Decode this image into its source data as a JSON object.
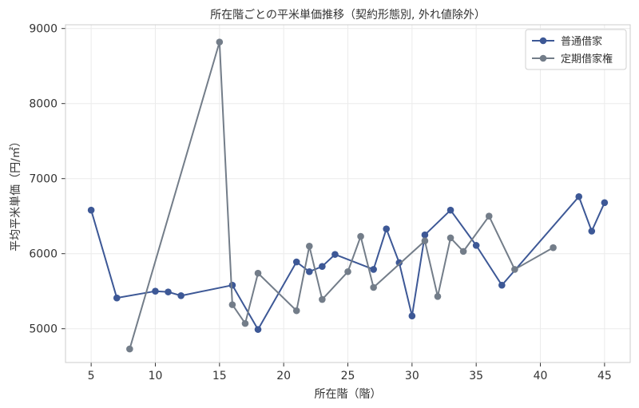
{
  "chart_data": {
    "type": "line",
    "title": "所在階ごとの平米単価推移（契約形態別, 外れ値除外）",
    "xlabel": "所在階（階）",
    "ylabel": "平均平米単価（円/㎡）",
    "xlim": [
      3,
      47
    ],
    "ylim": [
      4550,
      9050
    ],
    "xticks": [
      5,
      10,
      15,
      20,
      25,
      30,
      35,
      40,
      45
    ],
    "yticks": [
      5000,
      6000,
      7000,
      8000,
      9000
    ],
    "grid": true,
    "legend_position": "top-right",
    "series": [
      {
        "name": "普通借家",
        "color": "#3d5896",
        "points": [
          [
            5,
            6580
          ],
          [
            7,
            5410
          ],
          [
            10,
            5500
          ],
          [
            11,
            5490
          ],
          [
            12,
            5440
          ],
          [
            16,
            5580
          ],
          [
            18,
            4990
          ],
          [
            21,
            5890
          ],
          [
            22,
            5760
          ],
          [
            23,
            5830
          ],
          [
            24,
            5990
          ],
          [
            27,
            5790
          ],
          [
            28,
            6330
          ],
          [
            29,
            5880
          ],
          [
            30,
            5170
          ],
          [
            31,
            6250
          ],
          [
            33,
            6580
          ],
          [
            35,
            6110
          ],
          [
            37,
            5580
          ],
          [
            43,
            6760
          ],
          [
            44,
            6300
          ],
          [
            45,
            6680
          ]
        ]
      },
      {
        "name": "定期借家権",
        "color": "#737d89",
        "points": [
          [
            8,
            4730
          ],
          [
            15,
            8820
          ],
          [
            16,
            5320
          ],
          [
            17,
            5070
          ],
          [
            18,
            5740
          ],
          [
            21,
            5240
          ],
          [
            22,
            6100
          ],
          [
            23,
            5390
          ],
          [
            25,
            5760
          ],
          [
            26,
            6230
          ],
          [
            27,
            5550
          ],
          [
            31,
            6170
          ],
          [
            32,
            5430
          ],
          [
            33,
            6210
          ],
          [
            34,
            6030
          ],
          [
            36,
            6500
          ],
          [
            38,
            5790
          ],
          [
            41,
            6080
          ]
        ]
      }
    ]
  }
}
